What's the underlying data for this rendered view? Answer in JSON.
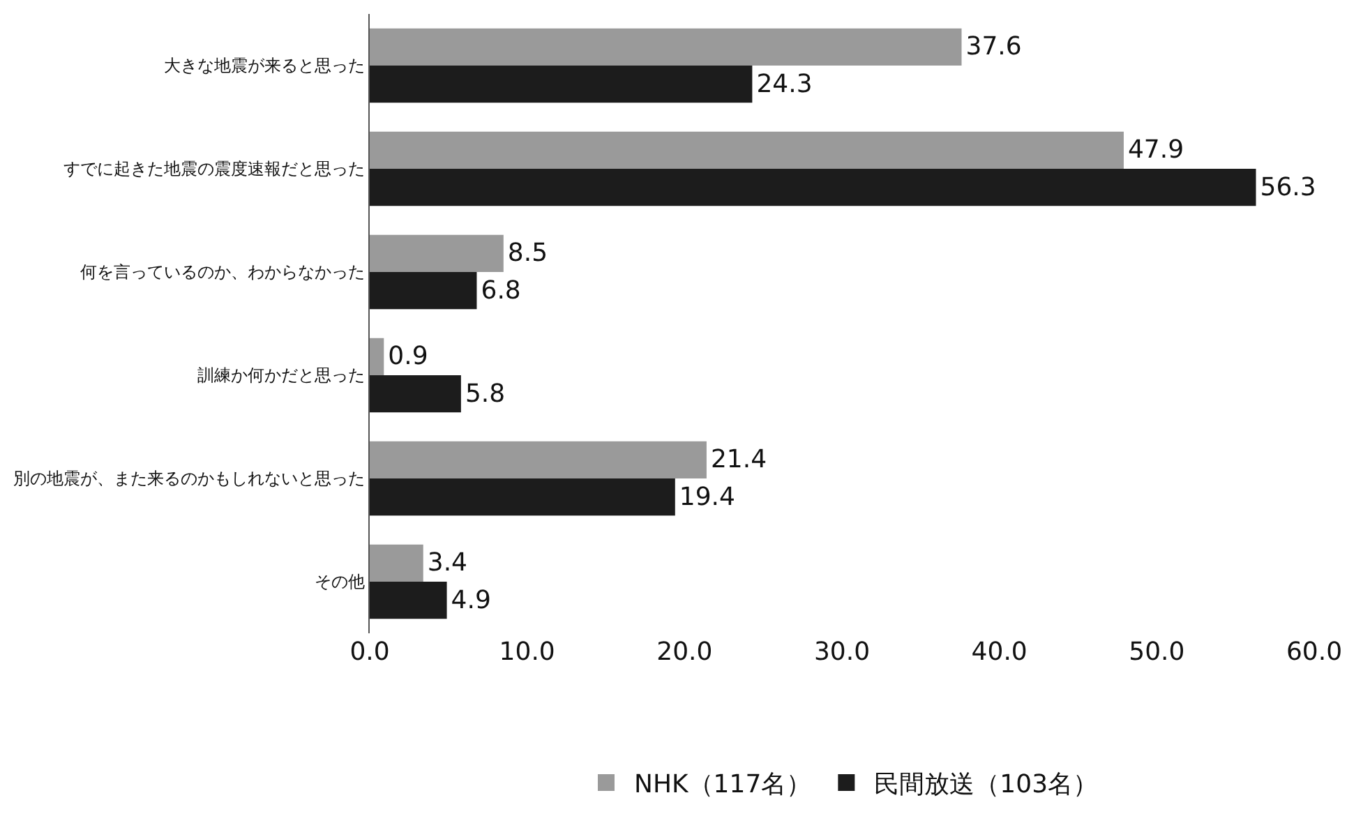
{
  "chart_data": {
    "type": "bar",
    "orientation": "horizontal",
    "categories": [
      "大きな地震が来ると思った",
      "すでに起きた地震の震度速報だと思った",
      "何を言っているのか、わからなかった",
      "訓練か何かだと思った",
      "別の地震が、また来るのかもしれないと思った",
      "その他"
    ],
    "series": [
      {
        "name": "NHK（117名）",
        "color": "#9a9a9a",
        "values": [
          37.6,
          47.9,
          8.5,
          0.9,
          21.4,
          3.4
        ]
      },
      {
        "name": "民間放送（103名）",
        "color": "#1c1c1c",
        "values": [
          24.3,
          56.3,
          6.8,
          5.8,
          19.4,
          4.9
        ]
      }
    ],
    "xlim": [
      0,
      60
    ],
    "xticks": [
      {
        "value": 0,
        "label": "0.0"
      },
      {
        "value": 10,
        "label": "10.0"
      },
      {
        "value": 20,
        "label": "20.0"
      },
      {
        "value": 30,
        "label": "30.0"
      },
      {
        "value": 40,
        "label": "40.0"
      },
      {
        "value": 50,
        "label": "50.0"
      },
      {
        "value": 60,
        "label": "60.0"
      }
    ],
    "data_labels": true,
    "legend": "bottom"
  }
}
